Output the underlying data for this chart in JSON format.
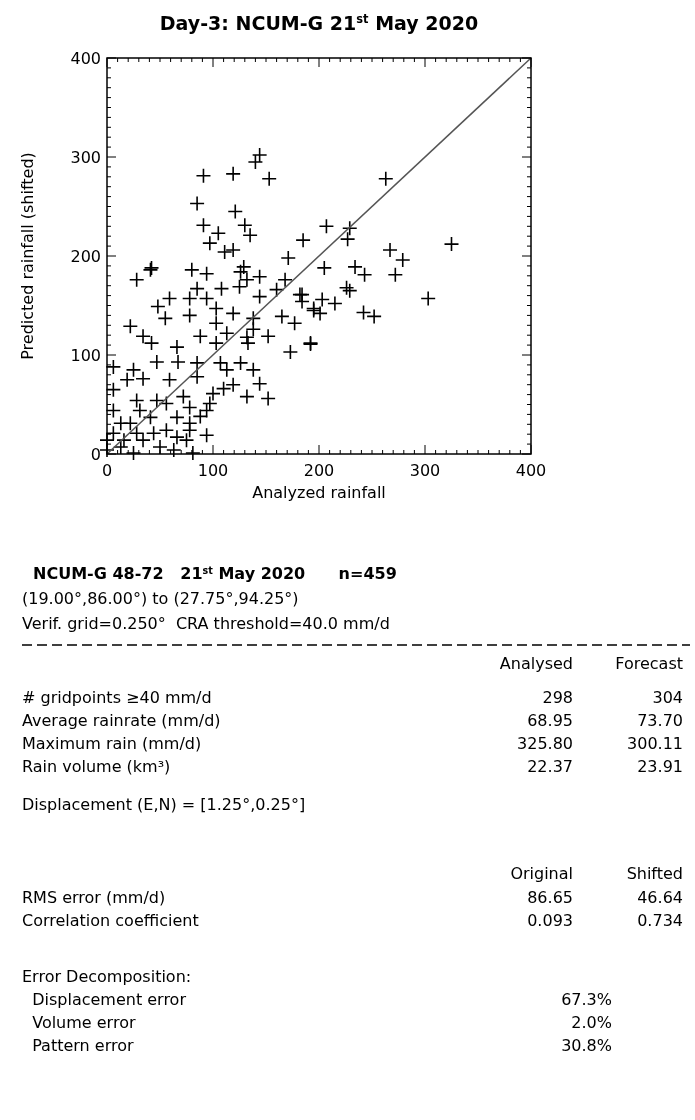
{
  "chart_data": {
    "type": "scatter",
    "title": "Day-3: NCUM-G 21$^{st}$ May 2020",
    "xlabel": "Analyzed rainfall",
    "ylabel": "Predicted rainfall (shifted)",
    "xlim": [
      0,
      400
    ],
    "ylim": [
      0,
      400
    ],
    "xticks": [
      0,
      100,
      200,
      300,
      400
    ],
    "yticks": [
      0,
      100,
      200,
      300,
      400
    ],
    "grid": false,
    "marker": "cross",
    "series": [
      {
        "color": "#000000",
        "x": [
          325,
          263,
          207,
          229,
          227,
          185,
          267,
          279,
          272,
          205,
          234,
          243,
          226,
          229,
          303,
          203,
          215,
          195,
          201,
          242,
          252,
          192,
          184,
          184,
          144,
          140,
          153,
          91,
          119,
          85,
          121,
          91,
          130,
          135,
          105,
          97,
          119,
          111,
          171,
          41,
          42,
          28,
          80,
          94,
          129,
          126,
          132,
          144,
          168,
          85,
          108,
          125,
          59,
          78,
          94,
          144,
          160,
          182,
          48,
          55,
          78,
          103,
          119,
          138,
          165,
          177,
          195,
          22,
          34,
          42,
          103,
          113,
          132,
          138,
          88,
          103,
          133,
          152,
          173,
          192,
          6,
          25,
          47,
          66,
          67,
          85,
          107,
          113,
          126,
          138,
          144,
          132,
          152,
          97,
          110,
          119,
          94,
          6,
          19,
          34,
          59,
          85,
          6,
          28,
          47,
          72,
          78,
          66,
          41,
          22,
          6,
          56,
          34,
          13,
          50,
          75,
          81,
          25,
          0,
          63,
          31,
          56,
          78,
          13,
          28,
          44,
          66,
          78,
          88,
          94,
          100,
          0,
          16
        ],
        "values": [
          212,
          278,
          230,
          228,
          217,
          216,
          206,
          196,
          181,
          188,
          189,
          181,
          168,
          165,
          157,
          156,
          152,
          145,
          142,
          143,
          139,
          111,
          161,
          154,
          302,
          295,
          278,
          281,
          283,
          253,
          245,
          231,
          231,
          221,
          223,
          213,
          206,
          204,
          198,
          186,
          188,
          176,
          186,
          182,
          189,
          184,
          176,
          179,
          176,
          167,
          167,
          169,
          157,
          157,
          157,
          159,
          166,
          161,
          149,
          137,
          140,
          147,
          142,
          137,
          139,
          132,
          147,
          129,
          119,
          112,
          132,
          122,
          118,
          126,
          119,
          112,
          112,
          119,
          103,
          112,
          88,
          85,
          93,
          108,
          93,
          92,
          92,
          85,
          92,
          85,
          71,
          58,
          56,
          51,
          66,
          70,
          19,
          65,
          75,
          76,
          75,
          78,
          44,
          54,
          54,
          58,
          31,
          37,
          37,
          31,
          21,
          24,
          14,
          7,
          7,
          14,
          1,
          1,
          4,
          4,
          44,
          51,
          47,
          31,
          21,
          21,
          17,
          24,
          38,
          44,
          61,
          14,
          14
        ]
      },
      {
        "type": "line",
        "color": "#555555",
        "marker": "none",
        "x": [
          0,
          400
        ],
        "values": [
          0,
          400
        ]
      }
    ],
    "annotations": [
      "NCUM-G 48-72   21$^{st}$ May 2020      n=459",
      "(19.00°,86.00°) to (27.75°,94.25°)",
      "Verif. grid=0.250°  CRA threshold=40.0 mm/d",
      "\tAnalysed\tForecast",
      "# gridpoints ≥40 mm/d\t298\t304",
      "Average rainrate (mm/d)\t68.95\t73.70",
      "Maximum rain (mm/d)\t325.80\t300.11",
      "Rain volume (km³)\t22.37\t23.91",
      "Displacement (E,N) = [1.25°,0.25°]",
      "\tOriginal\tShifted",
      "RMS error (mm/d)\t86.65\t46.64",
      "Correlation coefficient\t0.093\t0.734",
      "Error Decomposition:",
      "  Displacement error\t67.3%",
      "  Volume error\t2.0%",
      "  Pattern error\t30.8%"
    ]
  }
}
